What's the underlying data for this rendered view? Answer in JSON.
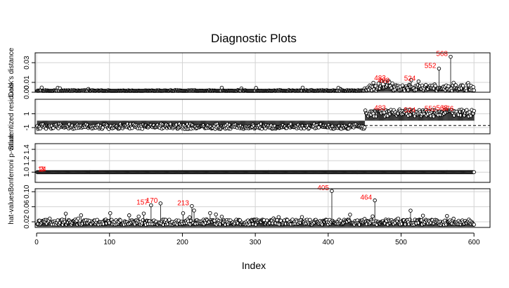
{
  "chart_data": {
    "type": "scatter",
    "title": "Diagnostic Plots",
    "xlabel": "Index",
    "xlim": [
      0,
      600
    ],
    "x_ticks": [
      0,
      100,
      200,
      300,
      400,
      500,
      600
    ],
    "n_points": 600,
    "grid": true,
    "panels": [
      {
        "id": "cooks",
        "ylabel": "Cook's distance",
        "ylim": [
          0,
          0.04
        ],
        "y_ticks": [
          0.0,
          0.01,
          0.03
        ],
        "style": "needles",
        "reference_line": null,
        "labeled_points": [
          {
            "x": 483,
            "y": 0.0115,
            "label": "483"
          },
          {
            "x": 488,
            "y": 0.009,
            "label": "488"
          },
          {
            "x": 524,
            "y": 0.011,
            "label": "524"
          },
          {
            "x": 552,
            "y": 0.024,
            "label": "552"
          },
          {
            "x": 568,
            "y": 0.036,
            "label": "568"
          }
        ]
      },
      {
        "id": "studentized",
        "ylabel": "Studentized residuals",
        "ylim": [
          -1.9,
          3.1
        ],
        "y_ticks": [
          -1,
          1
        ],
        "style": "needles",
        "reference_line": {
          "y": -0.7,
          "dash": true
        },
        "labeled_points": [
          {
            "x": 483,
            "y": 1.4,
            "label": "483"
          },
          {
            "x": 524,
            "y": 1.1,
            "label": "524"
          },
          {
            "x": 552,
            "y": 1.3,
            "label": "552"
          },
          {
            "x": 568,
            "y": 1.4,
            "label": "568"
          },
          {
            "x": 576,
            "y": 1.3,
            "label": "576"
          }
        ]
      },
      {
        "id": "bonferroni",
        "ylabel": "Bonferroni p-value",
        "ylim": [
          0.82,
          1.5
        ],
        "y_ticks": [
          1.0,
          1.2,
          1.4
        ],
        "style": "points",
        "constant_value": 1.0,
        "reference_line": null,
        "labeled_points": [
          {
            "x": 11,
            "y": 1.0,
            "label": "1"
          },
          {
            "x": 13,
            "y": 1.0,
            "label": "2"
          },
          {
            "x": 15,
            "y": 1.0,
            "label": "3"
          },
          {
            "x": 17,
            "y": 1.0,
            "label": "4"
          }
        ]
      },
      {
        "id": "hat",
        "ylabel": "hat-values",
        "ylim": [
          0.005,
          0.108
        ],
        "y_ticks": [
          0.02,
          0.06,
          0.1
        ],
        "style": "needles",
        "reference_line": null,
        "labeled_points": [
          {
            "x": 157,
            "y": 0.064,
            "label": "157"
          },
          {
            "x": 170,
            "y": 0.069,
            "label": "170"
          },
          {
            "x": 213,
            "y": 0.062,
            "label": "213"
          },
          {
            "x": 405,
            "y": 0.102,
            "label": "405"
          },
          {
            "x": 464,
            "y": 0.077,
            "label": "464"
          }
        ]
      }
    ]
  }
}
